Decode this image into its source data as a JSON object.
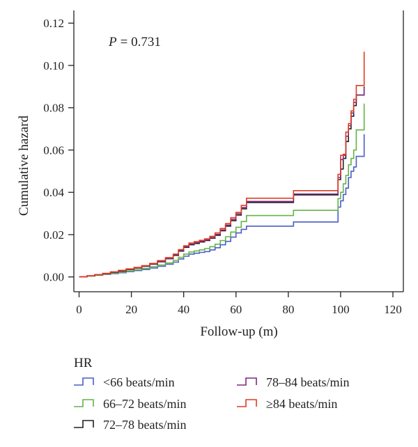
{
  "chart_data": {
    "type": "line",
    "step": true,
    "annotation": {
      "prefix": "P",
      "value": "= 0.731"
    },
    "xlabel": "Follow-up (m)",
    "ylabel": "Cumulative hazard",
    "xlim": [
      -2,
      124
    ],
    "ylim": [
      -0.007,
      0.126
    ],
    "xticks": [
      0,
      20,
      40,
      60,
      80,
      100,
      120
    ],
    "yticks": [
      0.0,
      0.02,
      0.04,
      0.06,
      0.08,
      0.1,
      0.12
    ],
    "ytick_labels": [
      "0.00",
      "0.02",
      "0.04",
      "0.06",
      "0.08",
      "0.10",
      "0.12"
    ],
    "grid": false,
    "legend": {
      "title": "HR",
      "placement": "bottom",
      "entries": [
        "<66 beats/min",
        "66–72 beats/min",
        "72–78 beats/min",
        "78–84 beats/min",
        "≥84 beats/min"
      ]
    },
    "series": [
      {
        "name": "<66 beats/min",
        "color": "#4a5cc7",
        "x": [
          0,
          3,
          6,
          9,
          12,
          15,
          18,
          21,
          24,
          27,
          30,
          33,
          36,
          38,
          40,
          42,
          44,
          46,
          48,
          50,
          52,
          54,
          56,
          58,
          60,
          62,
          64,
          82,
          99,
          100,
          101,
          102,
          103,
          104,
          105,
          106,
          109
        ],
        "y": [
          0.0,
          0.0004,
          0.0008,
          0.0012,
          0.0016,
          0.002,
          0.0025,
          0.003,
          0.0035,
          0.0042,
          0.005,
          0.006,
          0.007,
          0.0085,
          0.0098,
          0.0108,
          0.0112,
          0.0116,
          0.012,
          0.0128,
          0.0138,
          0.0152,
          0.0168,
          0.0188,
          0.0208,
          0.0225,
          0.024,
          0.026,
          0.033,
          0.036,
          0.039,
          0.042,
          0.047,
          0.05,
          0.052,
          0.057,
          0.0675
        ]
      },
      {
        "name": "66–72 beats/min",
        "color": "#63b346",
        "x": [
          0,
          3,
          6,
          9,
          12,
          15,
          18,
          21,
          24,
          27,
          30,
          33,
          36,
          38,
          40,
          42,
          44,
          46,
          48,
          50,
          52,
          54,
          56,
          58,
          60,
          62,
          64,
          82,
          99,
          100,
          101,
          102,
          103,
          104,
          105,
          106,
          109
        ],
        "y": [
          0.0,
          0.0004,
          0.0008,
          0.0013,
          0.0018,
          0.0023,
          0.0028,
          0.0034,
          0.004,
          0.0048,
          0.0056,
          0.0066,
          0.0078,
          0.0093,
          0.0108,
          0.0118,
          0.0123,
          0.0128,
          0.0134,
          0.0143,
          0.0155,
          0.0172,
          0.019,
          0.0212,
          0.0235,
          0.0262,
          0.029,
          0.0315,
          0.037,
          0.04,
          0.044,
          0.048,
          0.053,
          0.056,
          0.06,
          0.0695,
          0.082
        ]
      },
      {
        "name": "72–78 beats/min",
        "color": "#231f20",
        "x": [
          0,
          3,
          6,
          9,
          12,
          15,
          18,
          21,
          24,
          27,
          30,
          33,
          36,
          38,
          40,
          42,
          44,
          46,
          48,
          50,
          52,
          54,
          56,
          58,
          60,
          62,
          64,
          82,
          99,
          100,
          101,
          102,
          103,
          104,
          105,
          106,
          109
        ],
        "y": [
          0.0,
          0.0005,
          0.001,
          0.0016,
          0.0022,
          0.0028,
          0.0035,
          0.0042,
          0.005,
          0.006,
          0.0072,
          0.0086,
          0.0102,
          0.0122,
          0.014,
          0.0152,
          0.0158,
          0.0165,
          0.0172,
          0.0183,
          0.0197,
          0.0218,
          0.024,
          0.0266,
          0.0292,
          0.0322,
          0.0352,
          0.0388,
          0.046,
          0.051,
          0.056,
          0.064,
          0.07,
          0.076,
          0.081,
          0.086,
          0.09
        ]
      },
      {
        "name": "78–84 beats/min",
        "color": "#7b2a7f",
        "x": [
          0,
          3,
          6,
          9,
          12,
          15,
          18,
          21,
          24,
          27,
          30,
          33,
          36,
          38,
          40,
          42,
          44,
          46,
          48,
          50,
          52,
          54,
          56,
          58,
          60,
          62,
          64,
          82,
          99,
          100,
          101,
          102,
          103,
          104,
          105,
          106,
          109
        ],
        "y": [
          0.0,
          0.0005,
          0.001,
          0.0016,
          0.0023,
          0.003,
          0.0037,
          0.0044,
          0.0052,
          0.0062,
          0.0074,
          0.0088,
          0.0105,
          0.0125,
          0.0143,
          0.0155,
          0.0162,
          0.0168,
          0.0175,
          0.0186,
          0.0201,
          0.0222,
          0.0245,
          0.0272,
          0.0298,
          0.0328,
          0.0357,
          0.0392,
          0.047,
          0.0555,
          0.0575,
          0.0665,
          0.0715,
          0.0775,
          0.0825,
          0.086,
          0.0895
        ]
      },
      {
        "name": "≥84 beats/min",
        "color": "#e03a22",
        "x": [
          0,
          3,
          6,
          9,
          12,
          15,
          18,
          21,
          24,
          27,
          30,
          33,
          36,
          38,
          40,
          42,
          44,
          46,
          48,
          50,
          52,
          54,
          56,
          58,
          60,
          62,
          64,
          82,
          99,
          100,
          101,
          102,
          103,
          104,
          105,
          106,
          109
        ],
        "y": [
          0.0,
          0.0005,
          0.0011,
          0.0017,
          0.0024,
          0.0031,
          0.0038,
          0.0045,
          0.0053,
          0.0064,
          0.0077,
          0.0091,
          0.0108,
          0.0129,
          0.0147,
          0.016,
          0.0167,
          0.0173,
          0.018,
          0.0192,
          0.0208,
          0.0229,
          0.0252,
          0.028,
          0.0305,
          0.0338,
          0.0372,
          0.0408,
          0.0485,
          0.0575,
          0.058,
          0.0685,
          0.0725,
          0.0785,
          0.084,
          0.0905,
          0.1065
        ]
      }
    ]
  }
}
